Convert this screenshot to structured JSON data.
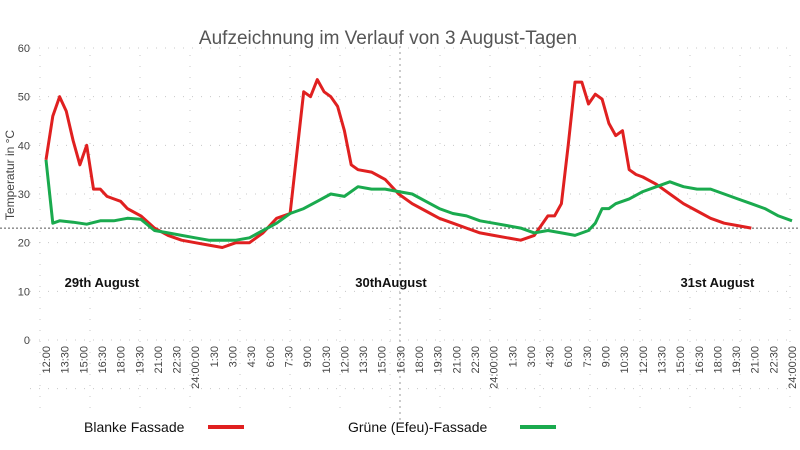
{
  "chart_data": {
    "type": "line",
    "title": "Aufzeichnung im Verlauf von 3 August-Tagen",
    "xlabel": "",
    "ylabel": "Temperatur in °C",
    "ylim": [
      0,
      60
    ],
    "yticks": [
      0,
      10,
      20,
      30,
      40,
      50,
      60
    ],
    "grid": true,
    "reference_line": 23,
    "categories": [
      "12:00",
      "13:30",
      "15:00",
      "16:30",
      "18:00",
      "19:30",
      "21:00",
      "22:30",
      "24:00:00",
      "1:30",
      "3:00",
      "4:30",
      "6:00",
      "7:30",
      "9:00",
      "10:30",
      "12:00",
      "13:30",
      "15:00",
      "16:30",
      "18:00",
      "19:30",
      "21:00",
      "22:30",
      "24:00:00",
      "1:30",
      "3:00",
      "4:30",
      "6:00",
      "7:30",
      "9:00",
      "10:30",
      "12:00",
      "13:30",
      "15:00",
      "16:30",
      "18:00",
      "19:30",
      "21:00",
      "22:30",
      "24:00:00"
    ],
    "series": [
      {
        "name": "Blanke Fassade",
        "color": "#e02020",
        "points": [
          [
            0,
            37
          ],
          [
            0.5,
            46
          ],
          [
            1,
            50
          ],
          [
            1.5,
            47
          ],
          [
            2,
            41
          ],
          [
            2.5,
            36
          ],
          [
            3,
            40
          ],
          [
            3.5,
            31
          ],
          [
            4,
            31
          ],
          [
            4.5,
            29.5
          ],
          [
            5,
            29
          ],
          [
            5.5,
            28.5
          ],
          [
            6,
            27
          ],
          [
            7,
            25.5
          ],
          [
            8,
            23
          ],
          [
            9,
            21.5
          ],
          [
            10,
            20.5
          ],
          [
            11,
            20
          ],
          [
            12,
            19.5
          ],
          [
            13,
            19
          ],
          [
            14,
            20
          ],
          [
            15,
            20
          ],
          [
            16,
            22
          ],
          [
            17,
            25
          ],
          [
            18,
            26
          ],
          [
            19,
            51
          ],
          [
            19.5,
            50
          ],
          [
            20,
            53.5
          ],
          [
            20.5,
            51
          ],
          [
            21,
            50
          ],
          [
            21.5,
            48
          ],
          [
            22,
            43
          ],
          [
            22.5,
            36
          ],
          [
            23,
            35
          ],
          [
            24,
            34.5
          ],
          [
            25,
            33
          ],
          [
            26,
            30
          ],
          [
            27,
            28
          ],
          [
            28,
            26.5
          ],
          [
            29,
            25
          ],
          [
            30,
            24
          ],
          [
            31,
            23
          ],
          [
            32,
            22
          ],
          [
            33,
            21.5
          ],
          [
            34,
            21
          ],
          [
            35,
            20.5
          ],
          [
            36,
            21.5
          ],
          [
            37,
            25.5
          ],
          [
            37.5,
            25.5
          ],
          [
            38,
            28
          ],
          [
            38.5,
            40
          ],
          [
            39,
            53
          ],
          [
            39.5,
            53
          ],
          [
            40,
            48.5
          ],
          [
            40.5,
            50.5
          ],
          [
            41,
            49.5
          ],
          [
            41.5,
            44.5
          ],
          [
            42,
            42
          ],
          [
            42.5,
            43
          ],
          [
            43,
            35
          ],
          [
            43.5,
            34
          ],
          [
            44,
            33.5
          ],
          [
            45,
            32
          ],
          [
            46,
            30
          ],
          [
            47,
            28
          ],
          [
            48,
            26.5
          ],
          [
            49,
            25
          ],
          [
            50,
            24
          ],
          [
            51,
            23.5
          ],
          [
            52,
            23
          ]
        ]
      },
      {
        "name": "Grüne (Efeu)-Fassade",
        "color": "#1aaa4e",
        "points": [
          [
            0,
            37
          ],
          [
            0.5,
            24
          ],
          [
            1,
            24.5
          ],
          [
            2,
            24.2
          ],
          [
            3,
            23.8
          ],
          [
            4,
            24.5
          ],
          [
            5,
            24.5
          ],
          [
            6,
            25
          ],
          [
            7,
            24.8
          ],
          [
            8,
            22.5
          ],
          [
            9,
            22
          ],
          [
            10,
            21.5
          ],
          [
            11,
            21
          ],
          [
            12,
            20.5
          ],
          [
            13,
            20.5
          ],
          [
            14,
            20.5
          ],
          [
            15,
            21
          ],
          [
            16,
            22.5
          ],
          [
            17,
            24
          ],
          [
            18,
            26
          ],
          [
            19,
            27
          ],
          [
            20,
            28.5
          ],
          [
            21,
            30
          ],
          [
            22,
            29.5
          ],
          [
            23,
            31.5
          ],
          [
            24,
            31
          ],
          [
            25,
            31
          ],
          [
            26,
            30.5
          ],
          [
            27,
            30
          ],
          [
            28,
            28.5
          ],
          [
            29,
            27
          ],
          [
            30,
            26
          ],
          [
            31,
            25.5
          ],
          [
            32,
            24.5
          ],
          [
            33,
            24
          ],
          [
            34,
            23.5
          ],
          [
            35,
            23
          ],
          [
            36,
            22
          ],
          [
            37,
            22.5
          ],
          [
            38,
            22
          ],
          [
            39,
            21.5
          ],
          [
            40,
            22.5
          ],
          [
            40.5,
            24
          ],
          [
            41,
            27
          ],
          [
            41.5,
            27
          ],
          [
            42,
            28
          ],
          [
            43,
            29
          ],
          [
            44,
            30.5
          ],
          [
            45,
            31.5
          ],
          [
            46,
            32.5
          ],
          [
            46.5,
            32
          ],
          [
            47,
            31.5
          ],
          [
            48,
            31
          ],
          [
            49,
            31
          ],
          [
            50,
            30
          ],
          [
            51,
            29
          ],
          [
            52,
            28
          ],
          [
            53,
            27
          ],
          [
            54,
            25.5
          ],
          [
            55,
            24.5
          ]
        ]
      }
    ],
    "annotations": [
      {
        "text": "29th August",
        "x_index": 3
      },
      {
        "text": "30thAugust",
        "x_index": 18.5
      },
      {
        "text": "31st August",
        "x_index": 36
      }
    ],
    "legend": "bottom"
  }
}
